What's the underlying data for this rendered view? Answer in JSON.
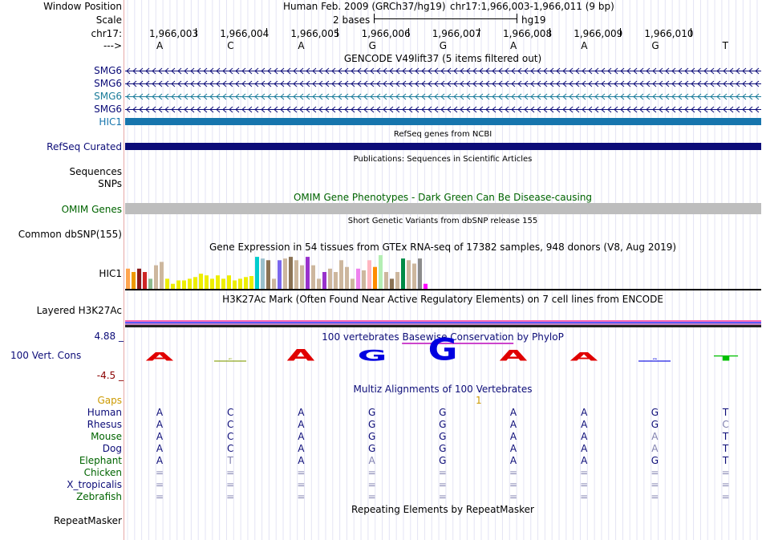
{
  "header": {
    "window_position_label": "Window Position",
    "scale_label": "Scale",
    "chrom_label": "chr17:",
    "strand_label": "--->",
    "assembly_text": "Human Feb. 2009 (GRCh37/hg19)",
    "position_text": "chr17:1,966,003-1,966,011 (9 bp)",
    "scale_text": "2 bases",
    "assembly_short": "hg19",
    "coordinates": [
      "1,966,003",
      "1,966,004",
      "1,966,005",
      "1,966,006",
      "1,966,007",
      "1,966,008",
      "1,966,009",
      "1,966,010"
    ],
    "bases": [
      "A",
      "C",
      "A",
      "G",
      "G",
      "A",
      "A",
      "G",
      "T"
    ]
  },
  "tracks": {
    "gencode": {
      "title": "GENCODE V49lift37 (5 items filtered out)",
      "items": [
        "SMG6",
        "SMG6",
        "SMG6",
        "SMG6",
        "HIC1"
      ],
      "colors": [
        "#0c0c78",
        "#0c0c78",
        "#1b7c9a",
        "#0c0c78",
        "#1675ad"
      ]
    },
    "refseq": {
      "title": "RefSeq genes from NCBI",
      "label": "RefSeq Curated",
      "color": "#0c0c78"
    },
    "publications": {
      "title": "Publications: Sequences in Scientific Articles",
      "label_sequences": "Sequences",
      "label_snps": "SNPs"
    },
    "omim": {
      "title": "OMIM Gene Phenotypes - Dark Green Can Be Disease-causing",
      "label": "OMIM Genes",
      "color": "#006400"
    },
    "dbsnp": {
      "title": "Short Genetic Variants from dbSNP release 155",
      "label": "Common dbSNP(155)"
    },
    "gtex": {
      "title": "Gene Expression in 54 tissues from GTEx RNA-seq of 17382 samples, 948 donors (V8, Aug 2019)",
      "label": "HIC1",
      "values": [
        0.6,
        0.5,
        0.6,
        0.5,
        0.3,
        0.7,
        0.8,
        0.3,
        0.15,
        0.25,
        0.25,
        0.3,
        0.35,
        0.45,
        0.4,
        0.3,
        0.4,
        0.3,
        0.4,
        0.25,
        0.3,
        0.35,
        0.38,
        0.95,
        0.9,
        0.85,
        0.3,
        0.85,
        0.9,
        0.95,
        0.85,
        0.7,
        0.95,
        0.7,
        0.3,
        0.5,
        0.6,
        0.5,
        0.85,
        0.65,
        0.3,
        0.6,
        0.55,
        0.85,
        0.65,
        1.0,
        0.5,
        0.3,
        0.5,
        0.9,
        0.85,
        0.75,
        0.9,
        0.15
      ],
      "colors": [
        "#ffa54f",
        "#ee9a00",
        "#8b1a1a",
        "#cd2626",
        "#8fbc8f",
        "#cdb79e",
        "#cdb79e",
        "#eeee00",
        "#eeee00",
        "#eeee00",
        "#eeee00",
        "#eeee00",
        "#eeee00",
        "#eeee00",
        "#eeee00",
        "#eeee00",
        "#eeee00",
        "#eeee00",
        "#eeee00",
        "#eeee00",
        "#eeee00",
        "#eeee00",
        "#eeee00",
        "#00cdcd",
        "#9ac0cd",
        "#8b7355",
        "#cdb79e",
        "#7a67ee",
        "#cdb79e",
        "#8b7355",
        "#cdb79e",
        "#cdb79e",
        "#9932cc",
        "#cdb79e",
        "#cdb79e",
        "#9932cc",
        "#cdb79e",
        "#cdb79e",
        "#cdb79e",
        "#cdb79e",
        "#cdb79e",
        "#ee82ee",
        "#cdb79e",
        "#ffb6c1",
        "#ff8c00",
        "#b4eeb4",
        "#cdb79e",
        "#8b7355",
        "#cdb79e",
        "#008b45",
        "#cdb79e",
        "#cdb79e",
        "#8b8b8b",
        "#ff00ff"
      ]
    },
    "h3k27ac": {
      "title": "H3K27Ac Mark (Often Found Near Active Regulatory Elements) on 7 cell lines from ENCODE",
      "label": "Layered H3K27Ac"
    },
    "phylop": {
      "title_pre": "100 vertebrates ",
      "title_highlight": "Basewise Conservation",
      "title_post": " by PhyloP",
      "label": "100 Vert. Cons",
      "max_label": "4.88 _",
      "min_label": "-4.5 _",
      "letters": [
        {
          "base": "A",
          "score": 0.6,
          "color": "#e00000"
        },
        {
          "base": "C",
          "score": 0.1,
          "color": "#7f9a00"
        },
        {
          "base": "A",
          "score": 1.1,
          "color": "#e00000"
        },
        {
          "base": "G",
          "score": 1.0,
          "color": "#0000e0"
        },
        {
          "base": "G",
          "score": 2.6,
          "color": "#0000e0"
        },
        {
          "base": "A",
          "score": 1.0,
          "color": "#e00000"
        },
        {
          "base": "A",
          "score": 0.6,
          "color": "#e00000"
        },
        {
          "base": "G",
          "score": 0.0,
          "color": "#0000e0"
        },
        {
          "base": "T",
          "score": 0.2,
          "color": "#00c000"
        }
      ]
    },
    "multiz": {
      "title": "Multiz Alignments of 100 Vertebrates",
      "gaps_label": "Gaps",
      "gap_marker": "1",
      "species": [
        {
          "name": "Human",
          "color": "#0c0c78",
          "bases": [
            "A",
            "C",
            "A",
            "G",
            "G",
            "A",
            "A",
            "G",
            "T"
          ]
        },
        {
          "name": "Rhesus",
          "color": "#0c0c78",
          "bases": [
            "A",
            "C",
            "A",
            "G",
            "G",
            "A",
            "A",
            "G",
            "C"
          ]
        },
        {
          "name": "Mouse",
          "color": "#006400",
          "bases": [
            "A",
            "C",
            "A",
            "G",
            "G",
            "A",
            "A",
            "A",
            "T"
          ]
        },
        {
          "name": "Dog",
          "color": "#0c0c78",
          "bases": [
            "A",
            "C",
            "A",
            "G",
            "G",
            "A",
            "A",
            "A",
            "T"
          ]
        },
        {
          "name": "Elephant",
          "color": "#006400",
          "bases": [
            "A",
            "T",
            "A",
            "A",
            "G",
            "A",
            "A",
            "G",
            "T"
          ]
        },
        {
          "name": "Chicken",
          "color": "#006400",
          "bases": [
            "=",
            "=",
            "=",
            "=",
            "=",
            "=",
            "=",
            "=",
            "="
          ]
        },
        {
          "name": "X_tropicalis",
          "color": "#0c0c78",
          "bases": [
            "=",
            "=",
            "=",
            "=",
            "=",
            "=",
            "=",
            "=",
            "="
          ]
        },
        {
          "name": "Zebrafish",
          "color": "#006400",
          "bases": [
            "=",
            "=",
            "=",
            "=",
            "=",
            "=",
            "=",
            "=",
            "="
          ]
        }
      ],
      "mismatch_color": "#8080b0"
    },
    "repeatmasker": {
      "title": "Repeating Elements by RepeatMasker",
      "label": "RepeatMasker"
    }
  }
}
